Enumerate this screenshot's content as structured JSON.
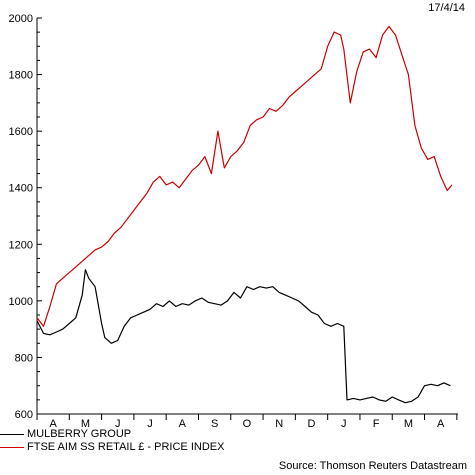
{
  "date_label": "17/4/14",
  "source": "Source: Thomson Reuters Datastream",
  "chart_data": {
    "type": "line",
    "title": "",
    "xlabel": "",
    "ylabel": "",
    "ylim": [
      600,
      2000
    ],
    "yticks": [
      600,
      800,
      1000,
      1200,
      1400,
      1600,
      1800,
      2000
    ],
    "xlim": [
      0,
      12.85
    ],
    "month_labels": [
      "A",
      "M",
      "J",
      "J",
      "A",
      "S",
      "O",
      "N",
      "D",
      "J",
      "F",
      "M",
      "A"
    ],
    "grid": false,
    "legend_position": "bottom-left",
    "series": [
      {
        "name": "MULBERRY GROUP",
        "color": "#000000",
        "x": [
          0.0,
          0.2,
          0.4,
          0.6,
          0.8,
          1.0,
          1.2,
          1.4,
          1.5,
          1.6,
          1.8,
          2.0,
          2.1,
          2.3,
          2.5,
          2.7,
          2.9,
          3.1,
          3.3,
          3.5,
          3.7,
          3.9,
          4.1,
          4.3,
          4.5,
          4.7,
          4.9,
          5.1,
          5.3,
          5.5,
          5.7,
          5.9,
          6.1,
          6.3,
          6.5,
          6.7,
          6.9,
          7.1,
          7.3,
          7.5,
          7.7,
          7.9,
          8.1,
          8.3,
          8.5,
          8.7,
          8.9,
          9.1,
          9.3,
          9.5,
          9.6,
          9.8,
          10.0,
          10.2,
          10.4,
          10.6,
          10.8,
          11.0,
          11.2,
          11.4,
          11.6,
          11.8,
          12.0,
          12.2,
          12.4,
          12.6,
          12.8
        ],
        "values": [
          930,
          885,
          880,
          890,
          900,
          920,
          940,
          1020,
          1110,
          1080,
          1050,
          920,
          870,
          850,
          860,
          910,
          940,
          950,
          960,
          970,
          990,
          980,
          1000,
          980,
          990,
          985,
          1000,
          1010,
          995,
          990,
          985,
          1000,
          1030,
          1010,
          1050,
          1040,
          1050,
          1045,
          1050,
          1030,
          1020,
          1010,
          1000,
          980,
          960,
          950,
          920,
          910,
          920,
          910,
          650,
          655,
          650,
          655,
          660,
          650,
          645,
          660,
          650,
          640,
          645,
          660,
          700,
          705,
          700,
          710,
          700
        ]
      },
      {
        "name": "FTSE AIM SS RETAIL £ - PRICE INDEX",
        "color": "#cc0000",
        "x": [
          0.0,
          0.2,
          0.4,
          0.6,
          0.8,
          1.0,
          1.2,
          1.4,
          1.6,
          1.8,
          2.0,
          2.2,
          2.4,
          2.6,
          2.8,
          3.0,
          3.2,
          3.4,
          3.6,
          3.8,
          4.0,
          4.2,
          4.4,
          4.6,
          4.8,
          5.0,
          5.2,
          5.4,
          5.6,
          5.8,
          6.0,
          6.2,
          6.4,
          6.6,
          6.8,
          7.0,
          7.2,
          7.4,
          7.6,
          7.8,
          8.0,
          8.2,
          8.4,
          8.6,
          8.8,
          9.0,
          9.2,
          9.4,
          9.5,
          9.7,
          9.9,
          10.1,
          10.3,
          10.5,
          10.7,
          10.9,
          11.1,
          11.3,
          11.5,
          11.7,
          11.9,
          12.1,
          12.3,
          12.5,
          12.7,
          12.85
        ],
        "values": [
          940,
          910,
          980,
          1060,
          1080,
          1100,
          1120,
          1140,
          1160,
          1180,
          1190,
          1210,
          1240,
          1260,
          1290,
          1320,
          1350,
          1380,
          1420,
          1440,
          1410,
          1420,
          1400,
          1430,
          1460,
          1480,
          1510,
          1450,
          1600,
          1470,
          1510,
          1530,
          1560,
          1620,
          1640,
          1650,
          1680,
          1670,
          1690,
          1720,
          1740,
          1760,
          1780,
          1800,
          1820,
          1900,
          1950,
          1940,
          1890,
          1700,
          1810,
          1880,
          1890,
          1860,
          1940,
          1970,
          1940,
          1870,
          1800,
          1620,
          1540,
          1500,
          1510,
          1440,
          1390,
          1410
        ]
      }
    ]
  }
}
